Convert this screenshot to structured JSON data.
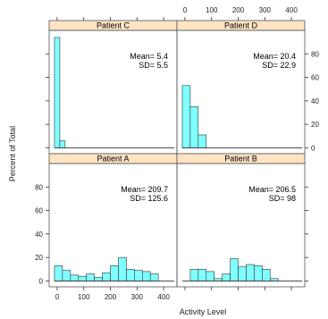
{
  "chart_data": {
    "type": "bar",
    "xlabel": "Activity Level",
    "ylabel": "Percent of Total",
    "xlim": [
      -30,
      450
    ],
    "ylim": [
      -5,
      100
    ],
    "x_ticks": [
      0,
      100,
      200,
      300,
      400
    ],
    "y_ticks": [
      0,
      20,
      40,
      60,
      80
    ],
    "bar_color": "#7fffff",
    "strip_color": "#ffe4c4",
    "panels": [
      {
        "name": "Patient C",
        "stat_lines": [
          "Mean= 5.4",
          "SD= 5.5"
        ],
        "bin_width": 20,
        "bins": [
          {
            "x": -10,
            "value": 94
          },
          {
            "x": 10,
            "value": 6
          }
        ]
      },
      {
        "name": "Patient D",
        "stat_lines": [
          "Mean= 20.4",
          "SD= 22.9"
        ],
        "bin_width": 30,
        "bins": [
          {
            "x": -10,
            "value": 53
          },
          {
            "x": 20,
            "value": 35
          },
          {
            "x": 50,
            "value": 11
          }
        ]
      },
      {
        "name": "Patient A",
        "stat_lines": [
          "Mean= 209.7",
          "SD= 125.6"
        ],
        "bin_width": 30,
        "bins": [
          {
            "x": -10,
            "value": 13
          },
          {
            "x": 20,
            "value": 9
          },
          {
            "x": 50,
            "value": 5
          },
          {
            "x": 80,
            "value": 4
          },
          {
            "x": 110,
            "value": 6
          },
          {
            "x": 140,
            "value": 3
          },
          {
            "x": 170,
            "value": 7
          },
          {
            "x": 200,
            "value": 13
          },
          {
            "x": 230,
            "value": 20
          },
          {
            "x": 260,
            "value": 10
          },
          {
            "x": 290,
            "value": 9
          },
          {
            "x": 320,
            "value": 8
          },
          {
            "x": 350,
            "value": 6
          }
        ]
      },
      {
        "name": "Patient B",
        "stat_lines": [
          "Mean= 206.5",
          "SD= 98"
        ],
        "bin_width": 30,
        "bins": [
          {
            "x": 20,
            "value": 10
          },
          {
            "x": 50,
            "value": 10
          },
          {
            "x": 80,
            "value": 8
          },
          {
            "x": 110,
            "value": 2
          },
          {
            "x": 140,
            "value": 6
          },
          {
            "x": 170,
            "value": 19
          },
          {
            "x": 200,
            "value": 12
          },
          {
            "x": 230,
            "value": 14
          },
          {
            "x": 260,
            "value": 13
          },
          {
            "x": 290,
            "value": 10
          },
          {
            "x": 320,
            "value": 2
          }
        ]
      }
    ]
  }
}
